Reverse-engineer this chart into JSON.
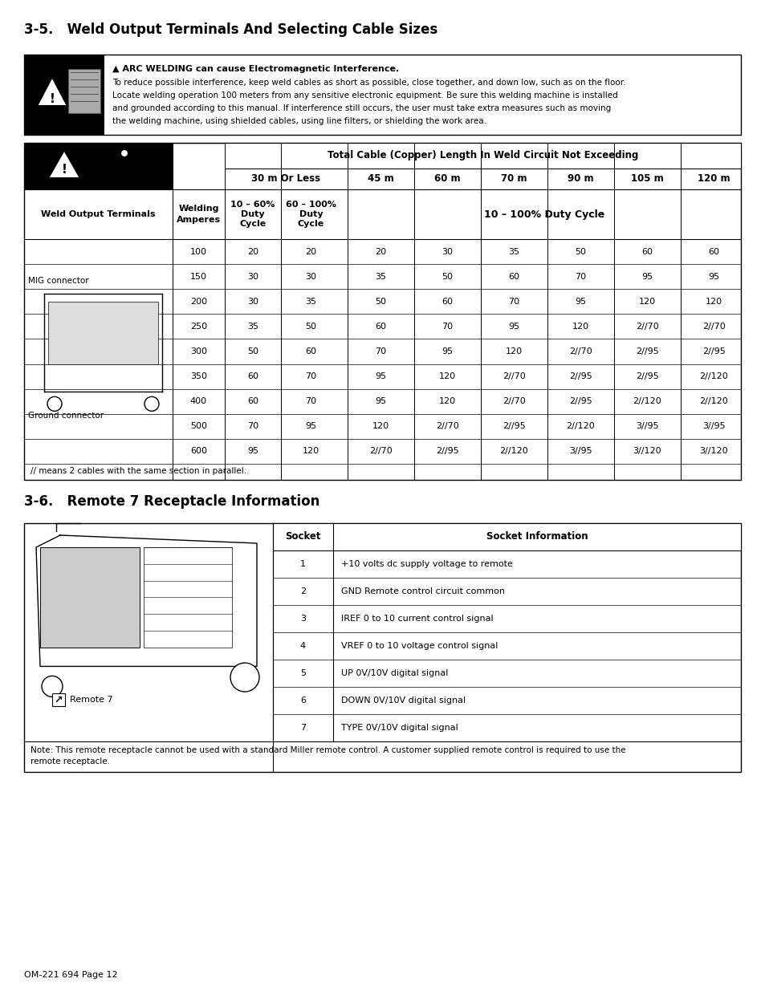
{
  "title1": "3-5.   Weld Output Terminals And Selecting Cable Sizes",
  "title2": "3-6.   Remote 7 Receptacle Information",
  "warning_bold": "ARC WELDING can cause Electromagnetic Interference.",
  "warning_text1": "To reduce possible interference, keep weld cables as short as possible, close together, and down low, such as on the floor.",
  "warning_text2": "Locate welding operation 100 meters from any sensitive electronic equipment. Be sure this welding machine is installed",
  "warning_text3": "and grounded according to this manual. If interference still occurs, the user must take extra measures such as moving",
  "warning_text4": "the welding machine, using shielded cables, using line filters, or shielding the work area.",
  "table1_header_top": "Total Cable (Copper) Length In Weld Circuit Not Exceeding",
  "table1_data": [
    [
      "100",
      "20",
      "20",
      "20",
      "30",
      "35",
      "50",
      "60",
      "60"
    ],
    [
      "150",
      "30",
      "30",
      "35",
      "50",
      "60",
      "70",
      "95",
      "95"
    ],
    [
      "200",
      "30",
      "35",
      "50",
      "60",
      "70",
      "95",
      "120",
      "120"
    ],
    [
      "250",
      "35",
      "50",
      "60",
      "70",
      "95",
      "120",
      "2//70",
      "2//70"
    ],
    [
      "300",
      "50",
      "60",
      "70",
      "95",
      "120",
      "2//70",
      "2//95",
      "2//95"
    ],
    [
      "350",
      "60",
      "70",
      "95",
      "120",
      "2//70",
      "2//95",
      "2//95",
      "2//120"
    ],
    [
      "400",
      "60",
      "70",
      "95",
      "120",
      "2//70",
      "2//95",
      "2//120",
      "2//120"
    ],
    [
      "500",
      "70",
      "95",
      "120",
      "2//70",
      "2//95",
      "2//120",
      "3//95",
      "3//95"
    ],
    [
      "600",
      "95",
      "120",
      "2//70",
      "2//95",
      "2//120",
      "3//95",
      "3//120",
      "3//120"
    ]
  ],
  "table1_footnote": "// means 2 cables with the same section in parallel.",
  "table2_headers": [
    "Socket",
    "Socket Information"
  ],
  "table2_data": [
    [
      "1",
      "+10 volts dc supply voltage to remote"
    ],
    [
      "2",
      "GND Remote control circuit common"
    ],
    [
      "3",
      "IREF 0 to 10 current control signal"
    ],
    [
      "4",
      "VREF 0 to 10 voltage control signal"
    ],
    [
      "5",
      "UP 0V/10V digital signal"
    ],
    [
      "6",
      "DOWN 0V/10V digital signal"
    ],
    [
      "7",
      "TYPE 0V/10V digital signal"
    ]
  ],
  "table2_note1": "Note: This remote receptacle cannot be used with a standard Miller remote control. A customer supplied remote control is required to use the",
  "table2_note2": "remote receptacle.",
  "remote_label": "Remote 7",
  "footer": "OM-221 694 Page 12"
}
